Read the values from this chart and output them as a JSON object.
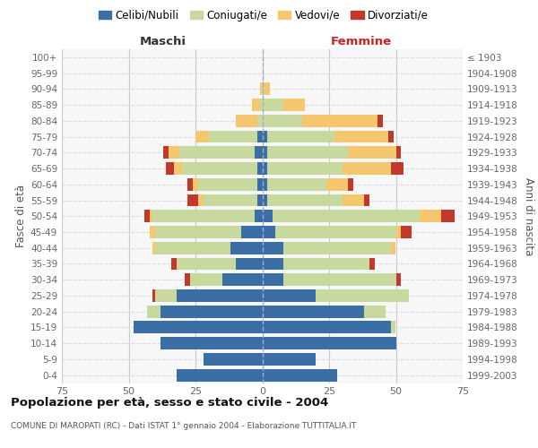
{
  "age_groups": [
    "100+",
    "95-99",
    "90-94",
    "85-89",
    "80-84",
    "75-79",
    "70-74",
    "65-69",
    "60-64",
    "55-59",
    "50-54",
    "45-49",
    "40-44",
    "35-39",
    "30-34",
    "25-29",
    "20-24",
    "15-19",
    "10-14",
    "5-9",
    "0-4"
  ],
  "birth_years": [
    "≤ 1903",
    "1904-1908",
    "1909-1913",
    "1914-1918",
    "1919-1923",
    "1924-1928",
    "1929-1933",
    "1934-1938",
    "1939-1943",
    "1944-1948",
    "1949-1953",
    "1954-1958",
    "1959-1963",
    "1964-1968",
    "1969-1973",
    "1974-1978",
    "1979-1983",
    "1984-1988",
    "1989-1993",
    "1994-1998",
    "1999-2003"
  ],
  "maschi_celibi": [
    0,
    0,
    0,
    0,
    0,
    2,
    3,
    2,
    2,
    2,
    3,
    8,
    12,
    10,
    15,
    32,
    38,
    48,
    38,
    22,
    32
  ],
  "maschi_coniugati": [
    0,
    0,
    0,
    1,
    2,
    18,
    28,
    28,
    22,
    20,
    38,
    32,
    28,
    22,
    12,
    8,
    5,
    0,
    0,
    0,
    0
  ],
  "maschi_vedovi": [
    0,
    0,
    1,
    3,
    8,
    5,
    4,
    3,
    2,
    2,
    1,
    2,
    1,
    0,
    0,
    0,
    0,
    0,
    0,
    0,
    0
  ],
  "maschi_divorziati": [
    0,
    0,
    0,
    0,
    0,
    0,
    2,
    3,
    2,
    4,
    2,
    0,
    0,
    2,
    2,
    1,
    0,
    0,
    0,
    0,
    0
  ],
  "femmine_nubili": [
    0,
    0,
    0,
    0,
    0,
    2,
    2,
    2,
    2,
    2,
    4,
    5,
    8,
    8,
    8,
    20,
    38,
    48,
    50,
    20,
    28
  ],
  "femmine_coniugate": [
    0,
    0,
    1,
    8,
    15,
    25,
    30,
    28,
    22,
    28,
    55,
    45,
    40,
    32,
    42,
    35,
    8,
    2,
    0,
    0,
    0
  ],
  "femmine_vedove": [
    0,
    0,
    2,
    8,
    28,
    20,
    18,
    18,
    8,
    8,
    8,
    2,
    2,
    0,
    0,
    0,
    0,
    0,
    0,
    0,
    0
  ],
  "femmine_divorziate": [
    0,
    0,
    0,
    0,
    2,
    2,
    2,
    5,
    2,
    2,
    5,
    4,
    0,
    2,
    2,
    0,
    0,
    0,
    0,
    0,
    0
  ],
  "color_celibi": "#3a6ea5",
  "color_coniugati": "#c8d9a0",
  "color_vedovi": "#f5c870",
  "color_divorziati": "#c0392b",
  "xlim": 75,
  "title": "Popolazione per età, sesso e stato civile - 2004",
  "subtitle": "COMUNE DI MAROPATI (RC) - Dati ISTAT 1° gennaio 2004 - Elaborazione TUTTITALIA.IT",
  "ylabel_left": "Fasce di età",
  "ylabel_right": "Anni di nascita",
  "xlabel_maschi": "Maschi",
  "xlabel_femmine": "Femmine",
  "legend_labels": [
    "Celibi/Nubili",
    "Coniugati/e",
    "Vedovi/e",
    "Divorziati/e"
  ],
  "bg_color": "#ffffff",
  "plot_bg": "#f7f7f7"
}
